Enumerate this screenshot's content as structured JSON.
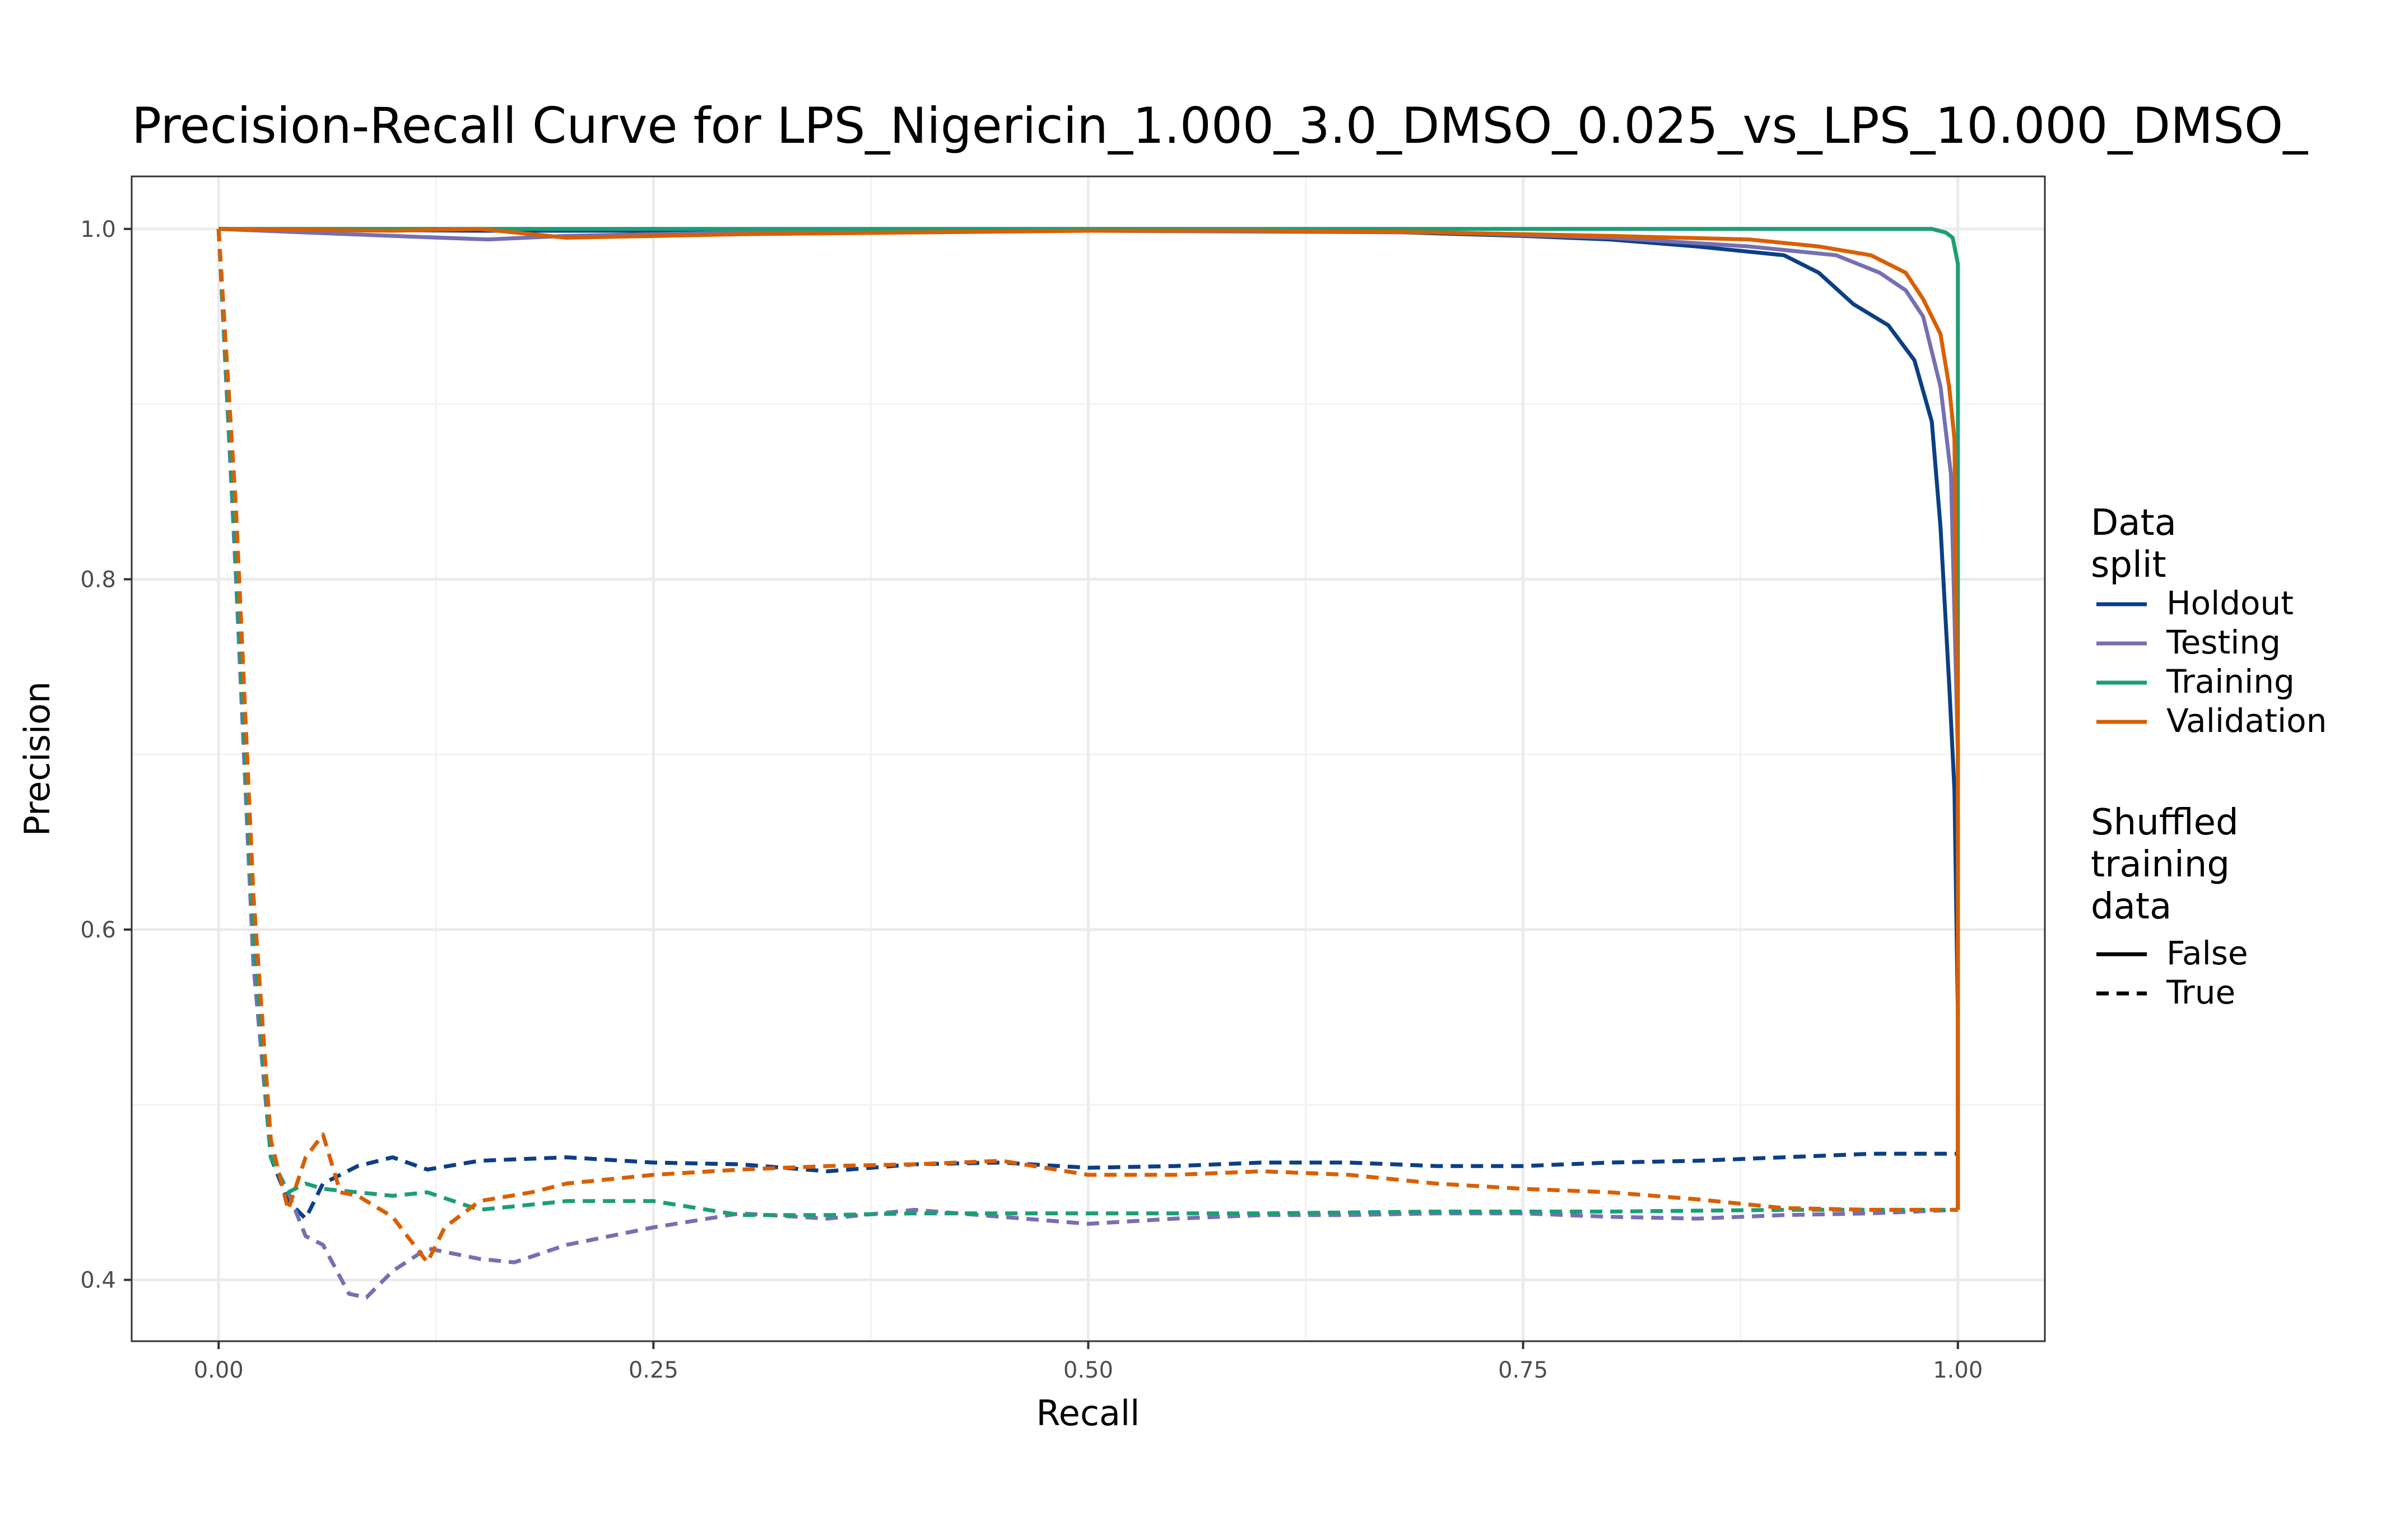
{
  "chart_data": {
    "type": "line",
    "title": "Precision-Recall Curve for LPS_Nigericin_1.000_3.0_DMSO_0.025_vs_LPS_10.000_DMSO_",
    "xlabel": "Recall",
    "ylabel": "Precision",
    "xlim": [
      -0.05,
      1.05
    ],
    "ylim": [
      0.365,
      1.03
    ],
    "x_ticks": [
      0.0,
      0.25,
      0.5,
      0.75,
      1.0
    ],
    "x_tick_labels": [
      "0.00",
      "0.25",
      "0.50",
      "0.75",
      "1.00"
    ],
    "y_ticks": [
      0.4,
      0.6,
      0.8,
      1.0
    ],
    "y_tick_labels": [
      "0.4",
      "0.6",
      "0.8",
      "1.0"
    ],
    "grid": true,
    "legend_position": "right",
    "legend": {
      "color_title": [
        "Data",
        "split"
      ],
      "color_entries": [
        {
          "label": "Holdout",
          "color": "#0b3f86"
        },
        {
          "label": "Testing",
          "color": "#7570b3"
        },
        {
          "label": "Training",
          "color": "#1b9e77"
        },
        {
          "label": "Validation",
          "color": "#d95f02"
        }
      ],
      "linetype_title": [
        "Shuffled",
        "training",
        "data"
      ],
      "linetype_entries": [
        {
          "label": "False",
          "dash": "solid"
        },
        {
          "label": "True",
          "dash": "dashed"
        }
      ]
    },
    "series": [
      {
        "split": "Holdout",
        "shuffled": "False",
        "color": "#0b3f86",
        "x": [
          0,
          0.15,
          0.3,
          0.5,
          0.65,
          0.75,
          0.8,
          0.85,
          0.9,
          0.92,
          0.94,
          0.96,
          0.975,
          0.985,
          0.99,
          0.995,
          0.998,
          1.0,
          1.0
        ],
        "y": [
          1.0,
          0.999,
          0.999,
          0.999,
          0.999,
          0.996,
          0.994,
          0.99,
          0.985,
          0.975,
          0.957,
          0.945,
          0.925,
          0.89,
          0.83,
          0.74,
          0.68,
          0.55,
          0.44
        ]
      },
      {
        "split": "Testing",
        "shuffled": "False",
        "color": "#7570b3",
        "x": [
          0,
          0.05,
          0.1,
          0.155,
          0.2,
          0.3,
          0.5,
          0.7,
          0.8,
          0.88,
          0.93,
          0.955,
          0.97,
          0.98,
          0.99,
          0.996,
          1.0,
          1.0
        ],
        "y": [
          1.0,
          0.998,
          0.996,
          0.994,
          0.996,
          0.998,
          0.999,
          0.998,
          0.995,
          0.99,
          0.985,
          0.975,
          0.965,
          0.95,
          0.91,
          0.86,
          0.7,
          0.44
        ]
      },
      {
        "split": "Training",
        "shuffled": "False",
        "color": "#1b9e77",
        "x": [
          0,
          0.3,
          0.6,
          0.9,
          0.975,
          0.985,
          0.993,
          0.997,
          1.0,
          1.0
        ],
        "y": [
          1.0,
          1.0,
          1.0,
          1.0,
          1.0,
          1.0,
          0.998,
          0.995,
          0.98,
          0.44
        ]
      },
      {
        "split": "Validation",
        "shuffled": "False",
        "color": "#d95f02",
        "x": [
          0,
          0.1,
          0.15,
          0.2,
          0.3,
          0.5,
          0.6,
          0.7,
          0.8,
          0.88,
          0.92,
          0.95,
          0.97,
          0.98,
          0.99,
          0.995,
          0.998,
          1.0,
          1.0
        ],
        "y": [
          1.0,
          0.999,
          1.0,
          0.995,
          0.997,
          0.999,
          0.999,
          0.998,
          0.996,
          0.994,
          0.99,
          0.985,
          0.975,
          0.96,
          0.94,
          0.91,
          0.88,
          0.7,
          0.44
        ]
      },
      {
        "split": "Holdout",
        "shuffled": "True",
        "color": "#0b3f86",
        "x": [
          0,
          0.01,
          0.02,
          0.03,
          0.04,
          0.05,
          0.06,
          0.07,
          0.08,
          0.1,
          0.12,
          0.15,
          0.2,
          0.25,
          0.3,
          0.35,
          0.4,
          0.45,
          0.5,
          0.55,
          0.6,
          0.65,
          0.7,
          0.75,
          0.8,
          0.85,
          0.9,
          0.95,
          1.0
        ],
        "y": [
          1.0,
          0.82,
          0.6,
          0.47,
          0.445,
          0.435,
          0.455,
          0.46,
          0.465,
          0.47,
          0.463,
          0.468,
          0.47,
          0.467,
          0.466,
          0.462,
          0.466,
          0.467,
          0.464,
          0.465,
          0.467,
          0.467,
          0.465,
          0.465,
          0.467,
          0.468,
          0.47,
          0.472,
          0.472
        ]
      },
      {
        "split": "Testing",
        "shuffled": "True",
        "color": "#7570b3",
        "x": [
          0,
          0.01,
          0.02,
          0.03,
          0.04,
          0.05,
          0.06,
          0.075,
          0.085,
          0.1,
          0.12,
          0.15,
          0.17,
          0.2,
          0.25,
          0.3,
          0.35,
          0.4,
          0.45,
          0.5,
          0.55,
          0.6,
          0.65,
          0.7,
          0.75,
          0.8,
          0.85,
          0.9,
          0.95,
          1.0
        ],
        "y": [
          1.0,
          0.8,
          0.58,
          0.47,
          0.45,
          0.425,
          0.42,
          0.392,
          0.39,
          0.405,
          0.418,
          0.412,
          0.41,
          0.42,
          0.43,
          0.438,
          0.435,
          0.44,
          0.436,
          0.432,
          0.435,
          0.437,
          0.437,
          0.438,
          0.438,
          0.436,
          0.435,
          0.437,
          0.438,
          0.44
        ]
      },
      {
        "split": "Training",
        "shuffled": "True",
        "color": "#1b9e77",
        "x": [
          0,
          0.01,
          0.02,
          0.03,
          0.04,
          0.05,
          0.06,
          0.08,
          0.1,
          0.12,
          0.15,
          0.2,
          0.25,
          0.3,
          0.35,
          0.4,
          0.5,
          0.6,
          0.7,
          0.8,
          0.9,
          1.0
        ],
        "y": [
          1.0,
          0.81,
          0.6,
          0.47,
          0.45,
          0.455,
          0.452,
          0.45,
          0.448,
          0.45,
          0.44,
          0.445,
          0.445,
          0.437,
          0.437,
          0.438,
          0.438,
          0.438,
          0.439,
          0.439,
          0.44,
          0.44
        ]
      },
      {
        "split": "Validation",
        "shuffled": "True",
        "color": "#d95f02",
        "x": [
          0,
          0.01,
          0.02,
          0.03,
          0.04,
          0.05,
          0.06,
          0.07,
          0.08,
          0.1,
          0.12,
          0.13,
          0.15,
          0.18,
          0.2,
          0.25,
          0.3,
          0.35,
          0.4,
          0.45,
          0.5,
          0.55,
          0.6,
          0.65,
          0.7,
          0.75,
          0.8,
          0.85,
          0.9,
          0.95,
          1.0
        ],
        "y": [
          1.0,
          0.84,
          0.62,
          0.48,
          0.44,
          0.47,
          0.483,
          0.45,
          0.448,
          0.436,
          0.41,
          0.43,
          0.445,
          0.45,
          0.455,
          0.46,
          0.463,
          0.465,
          0.466,
          0.468,
          0.46,
          0.46,
          0.462,
          0.46,
          0.455,
          0.452,
          0.45,
          0.446,
          0.441,
          0.44,
          0.44
        ]
      }
    ]
  }
}
